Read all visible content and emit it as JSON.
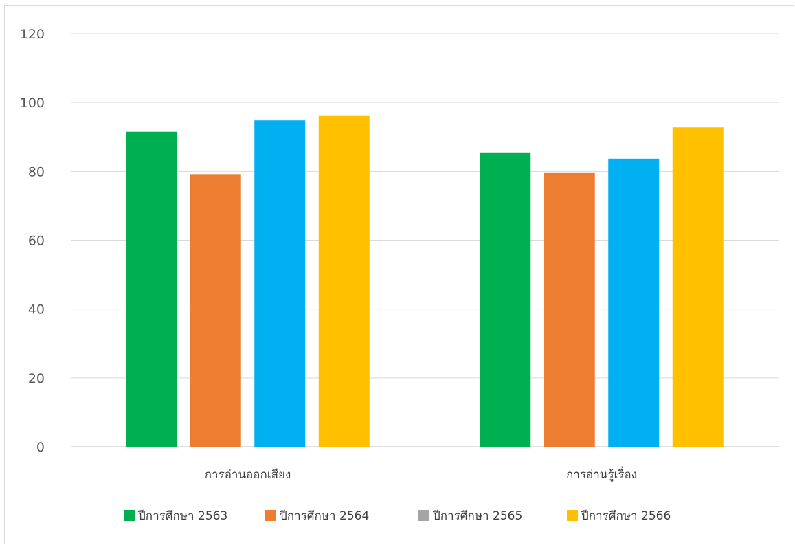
{
  "chart_data": {
    "type": "bar",
    "title": "",
    "xlabel": "",
    "ylabel": "",
    "ylim": [
      0,
      120
    ],
    "yticks": [
      0,
      20,
      40,
      60,
      80,
      100,
      120
    ],
    "grid": true,
    "legend_position": "bottom",
    "categories": [
      "การอ่านออกเสียง",
      "การอ่านรู้เรื่อง"
    ],
    "series": [
      {
        "name": "ปีการศึกษา 2563",
        "color": "#00b050",
        "values": [
          91.5,
          85.5
        ],
        "show_bar": true
      },
      {
        "name": "ปีการศึกษา 2564",
        "color": "#ed7d31",
        "values": [
          79.2,
          79.7
        ],
        "show_bar": true
      },
      {
        "name": "ปีการศึกษา 2565",
        "color": "#a5a5a5",
        "values": [
          94.8,
          83.7
        ],
        "bar_color": "#00b0f0",
        "show_bar": true
      },
      {
        "name": "ปีการศึกษา 2566",
        "color": "#ffc000",
        "values": [
          96.1,
          92.8
        ],
        "show_bar": true
      }
    ],
    "colors": {
      "gridline": "#d9d9d9",
      "axis": "#bfbfbf"
    }
  }
}
